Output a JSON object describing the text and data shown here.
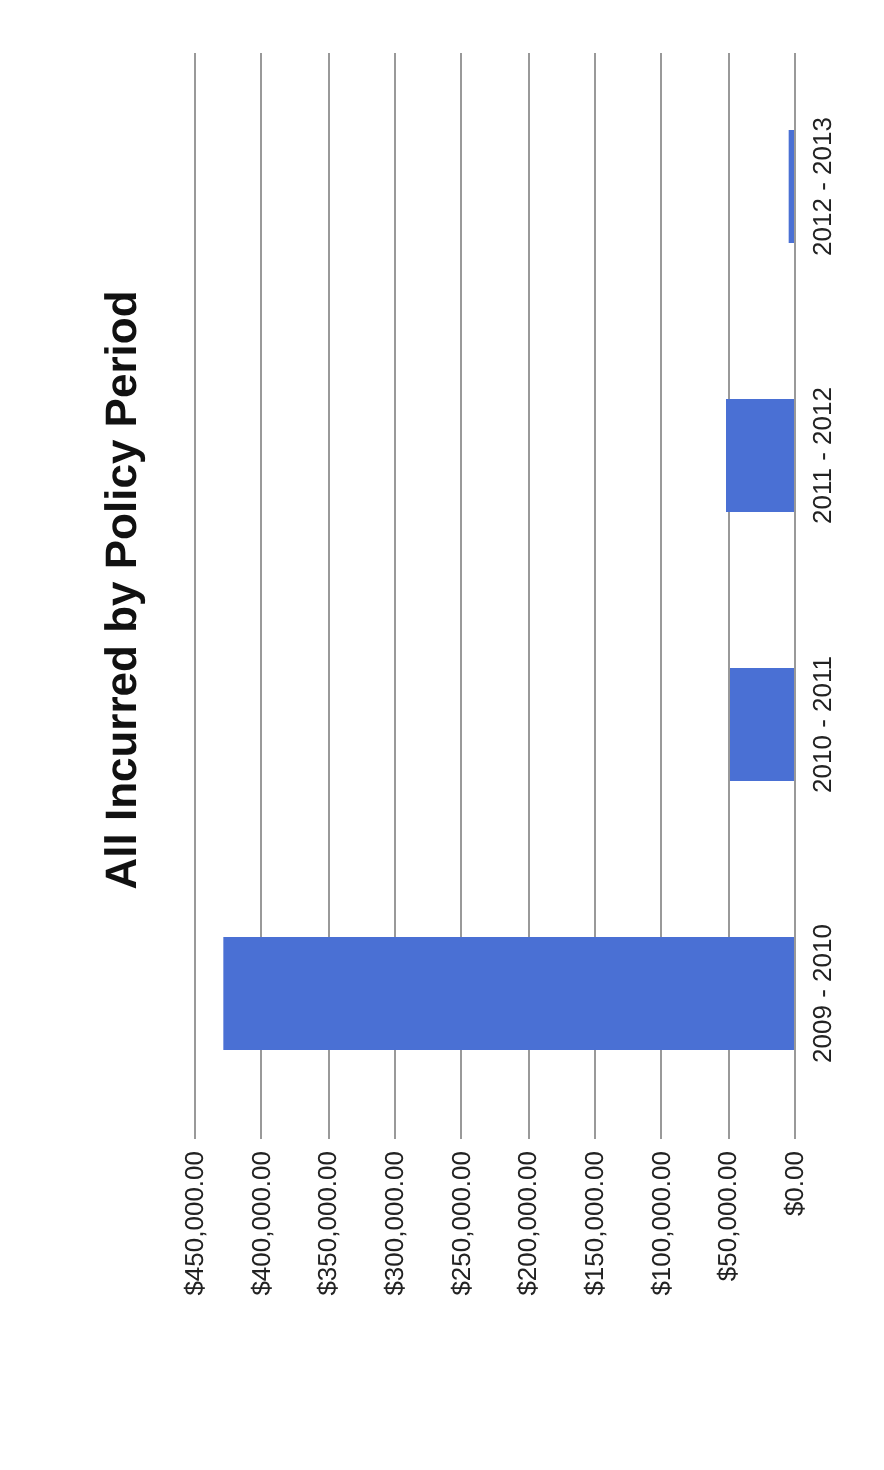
{
  "chart_data": {
    "type": "bar",
    "orientation": "horizontal",
    "title": "All Incurred by Policy Period",
    "categories": [
      "2012 - 2013",
      "2011 - 2012",
      "2010 - 2011",
      "2009 - 2010"
    ],
    "values": [
      4000,
      51000,
      48000,
      428000
    ],
    "color": "#4a70d4",
    "xlim": [
      450000,
      0
    ],
    "xticks": [
      {
        "value": 450000,
        "label": "$450,000.00"
      },
      {
        "value": 400000,
        "label": "$400,000.00"
      },
      {
        "value": 350000,
        "label": "$350,000.00"
      },
      {
        "value": 300000,
        "label": "$300,000.00"
      },
      {
        "value": 250000,
        "label": "$250,000.00"
      },
      {
        "value": 200000,
        "label": "$200,000.00"
      },
      {
        "value": 150000,
        "label": "$150,000.00"
      },
      {
        "value": 100000,
        "label": "$100,000.00"
      },
      {
        "value": 50000,
        "label": "$50,000.00"
      },
      {
        "value": 0,
        "label": "$0.00"
      }
    ],
    "grid": "x"
  }
}
